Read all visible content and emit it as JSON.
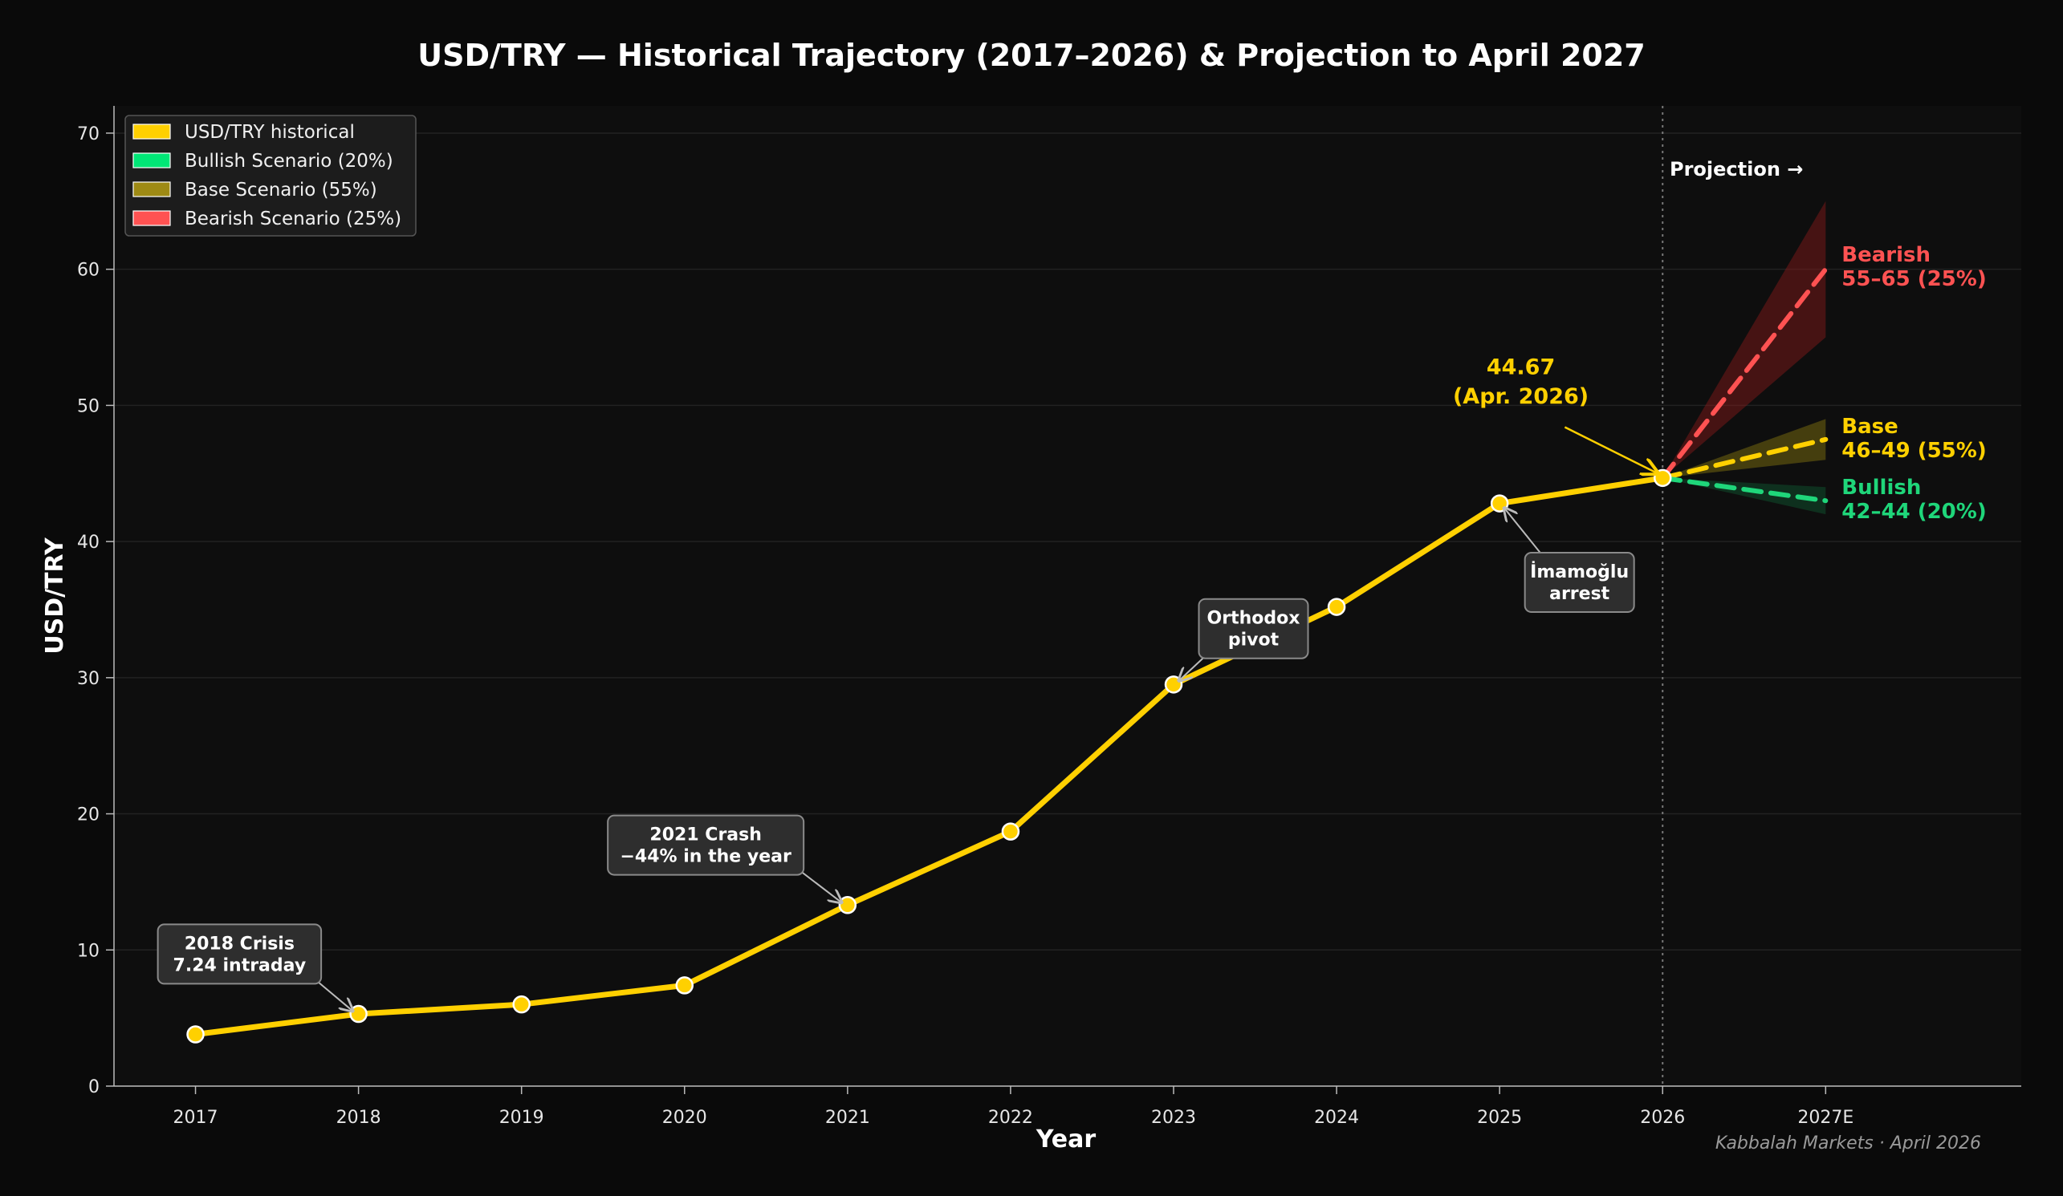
{
  "chart_data": {
    "type": "line",
    "title": "USD/TRY — Historical Trajectory (2017–2026) & Projection to April 2027",
    "xlabel": "Year",
    "ylabel": "USD/TRY",
    "ylim": [
      0,
      72
    ],
    "yticks": [
      0,
      10,
      20,
      30,
      40,
      50,
      60,
      70
    ],
    "xticks": [
      {
        "x": 2017,
        "label": "2017"
      },
      {
        "x": 2018,
        "label": "2018"
      },
      {
        "x": 2019,
        "label": "2019"
      },
      {
        "x": 2020,
        "label": "2020"
      },
      {
        "x": 2021,
        "label": "2021"
      },
      {
        "x": 2022,
        "label": "2022"
      },
      {
        "x": 2023,
        "label": "2023"
      },
      {
        "x": 2024,
        "label": "2024"
      },
      {
        "x": 2025,
        "label": "2025"
      },
      {
        "x": 2026,
        "label": "2026"
      },
      {
        "x": 2027,
        "label": "2027E"
      }
    ],
    "xlim": [
      2016.5,
      2028.2
    ],
    "grid": true,
    "legend_position": "top-left",
    "legend": [
      {
        "label": "USD/TRY historical",
        "color": "#ffd000"
      },
      {
        "label": "Bullish Scenario (20%)",
        "color": "#00e676"
      },
      {
        "label": "Base Scenario (55%)",
        "color": "#9e8a14"
      },
      {
        "label": "Bearish Scenario (25%)",
        "color": "#ff5252"
      }
    ],
    "historical": {
      "color": "#ffd000",
      "x": [
        2017,
        2018,
        2019,
        2020,
        2021,
        2022,
        2023,
        2024,
        2025,
        2026
      ],
      "y": [
        3.8,
        5.3,
        6.0,
        7.4,
        13.3,
        18.7,
        29.5,
        35.2,
        42.8,
        44.67
      ]
    },
    "projection": {
      "divider_x": 2026,
      "label": "Projection →",
      "scenarios": [
        {
          "key": "bearish",
          "color": "#ff5252",
          "band_color": "#8b1a1a",
          "x": [
            2026,
            2027
          ],
          "y": [
            44.67,
            60
          ],
          "low": [
            44.67,
            55
          ],
          "high": [
            44.67,
            65
          ],
          "title": "Bearish",
          "range": "55–65 (25%)"
        },
        {
          "key": "base",
          "color": "#ffd000",
          "band_color": "#8a7a10",
          "x": [
            2026,
            2027
          ],
          "y": [
            44.67,
            47.5
          ],
          "low": [
            44.67,
            46
          ],
          "high": [
            44.67,
            49
          ],
          "title": "Base",
          "range": "46–49 (55%)"
        },
        {
          "key": "bullish",
          "color": "#1fd67a",
          "band_color": "#0f5a33",
          "x": [
            2026,
            2027
          ],
          "y": [
            44.67,
            43
          ],
          "low": [
            44.67,
            42
          ],
          "high": [
            44.67,
            44
          ],
          "title": "Bullish",
          "range": "42–44 (20%)"
        }
      ]
    },
    "annotations": [
      {
        "lines": [
          "2018 Crisis",
          "7.24 intraday"
        ],
        "point": [
          2018,
          5.3
        ],
        "box_center": [
          2017.27,
          9.7
        ]
      },
      {
        "lines": [
          "2021 Crash",
          "−44% in the year"
        ],
        "point": [
          2021,
          13.3
        ],
        "box_center": [
          2020.13,
          17.7
        ]
      },
      {
        "lines": [
          "Orthodox",
          "pivot"
        ],
        "point": [
          2023,
          29.5
        ],
        "box_center": [
          2023.49,
          33.6
        ]
      },
      {
        "lines": [
          "İmamoğlu",
          "arrest"
        ],
        "point": [
          2025,
          42.8
        ],
        "box_center": [
          2025.49,
          37.0
        ]
      }
    ],
    "current_label": {
      "lines": [
        "44.67",
        "(Apr. 2026)"
      ],
      "color": "#ffd000"
    },
    "footer": "Kabbalah Markets · April 2026"
  }
}
